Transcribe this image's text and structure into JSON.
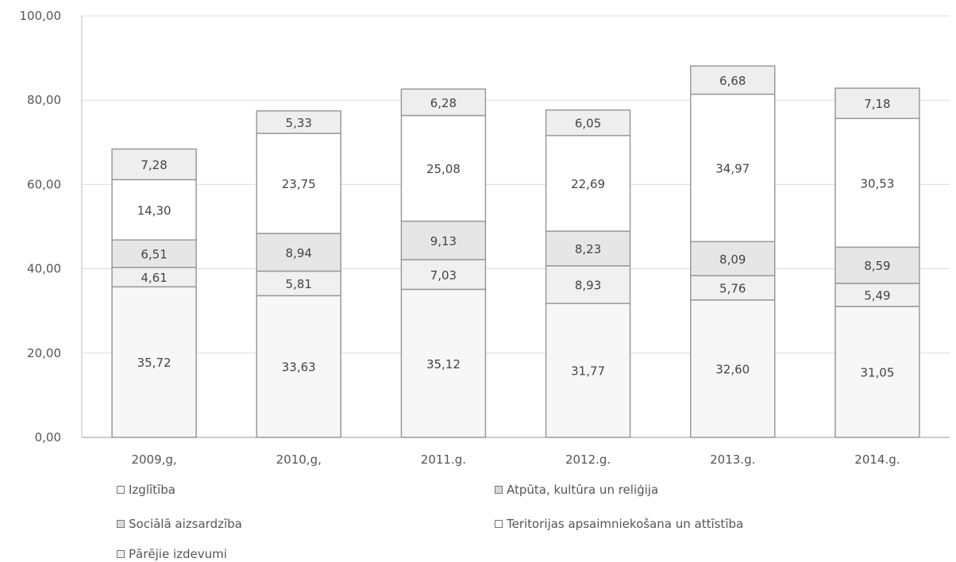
{
  "chart_data": {
    "type": "bar",
    "stacked": true,
    "categories": [
      "2009,g,",
      "2010,g,",
      "2011.g.",
      "2012.g.",
      "2013.g.",
      "2014.g."
    ],
    "series": [
      {
        "name": "Izglītība",
        "values": [
          35.72,
          33.63,
          35.12,
          31.77,
          32.6,
          31.05
        ],
        "labels": [
          "35,72",
          "33,63",
          "35,12",
          "31,77",
          "32,60",
          "31,05"
        ],
        "color": "#f7f7f7"
      },
      {
        "name": "Sociālā aizsardzība",
        "values": [
          4.61,
          5.81,
          7.03,
          8.93,
          5.76,
          5.49
        ],
        "labels": [
          "4,61",
          "5,81",
          "7,03",
          "8,93",
          "5,76",
          "5,49"
        ],
        "color": "#f0f0f0"
      },
      {
        "name": "Atpūta, kultūra un reliģija",
        "values": [
          6.51,
          8.94,
          9.13,
          8.23,
          8.09,
          8.59
        ],
        "labels": [
          "6,51",
          "8,94",
          "9,13",
          "8,23",
          "8,09",
          "8,59"
        ],
        "color": "#e6e6e6"
      },
      {
        "name": "Teritorijas apsaimniekošana un attīstība",
        "values": [
          14.3,
          23.75,
          25.08,
          22.69,
          34.97,
          30.53
        ],
        "labels": [
          "14,30",
          "23,75",
          "25,08",
          "22,69",
          "34,97",
          "30,53"
        ],
        "color": "#ffffff"
      },
      {
        "name": "Pārējie izdevumi",
        "values": [
          7.28,
          5.33,
          6.28,
          6.05,
          6.68,
          7.18
        ],
        "labels": [
          "7,28",
          "5,33",
          "6,28",
          "6,05",
          "6,68",
          "7,18"
        ],
        "color": "#eeeeee"
      }
    ],
    "ylim": [
      0,
      100
    ],
    "yticks": [
      0,
      20,
      40,
      60,
      80,
      100
    ],
    "ytick_labels": [
      "0,00",
      "20,00",
      "40,00",
      "60,00",
      "80,00",
      "100,00"
    ],
    "title": "",
    "xlabel": "",
    "ylabel": "",
    "grid": true,
    "legend_position": "bottom"
  },
  "legend": {
    "items": [
      {
        "label": "Izglītība",
        "color": "#f7f7f7"
      },
      {
        "label": "Atpūta, kultūra un reliģija",
        "color": "#d9d9d9"
      },
      {
        "label": "Sociālā aizsardzība",
        "color": "#dcdcdc"
      },
      {
        "label": "Teritorijas apsaimniekošana un attīstība",
        "color": "#ffffff"
      },
      {
        "label": "Pārējie izdevumi",
        "color": "#eeeeee"
      }
    ]
  }
}
